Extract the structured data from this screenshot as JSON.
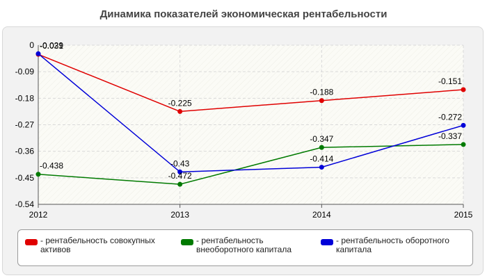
{
  "chart_data": {
    "type": "line",
    "title": "Динамика показателей экономическая рентабельности",
    "x": [
      "2012",
      "2013",
      "2014",
      "2015"
    ],
    "ylim": [
      -0.54,
      0
    ],
    "yticks": [
      0,
      -0.09,
      -0.18,
      -0.27,
      -0.36,
      -0.45,
      -0.54
    ],
    "ytick_labels": [
      "0",
      "-0.09",
      "-0.18",
      "-0.27",
      "-0.36",
      "-0.45",
      "-0.54"
    ],
    "grid": true,
    "legend_position": "bottom",
    "series": [
      {
        "name": "- рентабельность совокупных активов",
        "color": "#e00000",
        "values": [
          -0.031,
          -0.225,
          -0.188,
          -0.151
        ],
        "labels": [
          "-0.031",
          "-0.225",
          "-0.188",
          "-0.151"
        ]
      },
      {
        "name": "- рентабельность внеоборотного капитала",
        "color": "#007a00",
        "values": [
          -0.438,
          -0.472,
          -0.347,
          -0.337
        ],
        "labels": [
          "-0.438",
          "-0.472",
          "-0.347",
          "-0.337"
        ]
      },
      {
        "name": "- рентабельность оборотного капитала",
        "color": "#0000d8",
        "values": [
          -0.029,
          -0.43,
          -0.414,
          -0.272
        ],
        "labels": [
          "-0.029",
          "-0.43",
          "-0.414",
          "-0.272"
        ]
      }
    ]
  }
}
